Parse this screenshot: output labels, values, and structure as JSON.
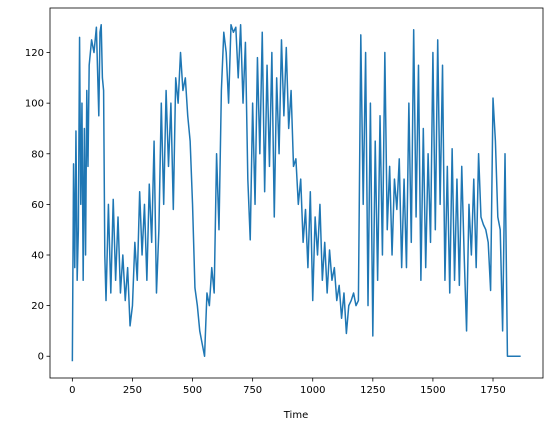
{
  "chart_data": {
    "type": "line",
    "xlabel": "Time",
    "x": [
      0,
      5,
      10,
      15,
      20,
      25,
      30,
      35,
      40,
      45,
      50,
      55,
      60,
      65,
      70,
      80,
      90,
      100,
      110,
      115,
      120,
      125,
      130,
      135,
      140,
      150,
      160,
      170,
      180,
      190,
      200,
      210,
      220,
      230,
      240,
      250,
      260,
      270,
      280,
      290,
      300,
      310,
      320,
      330,
      340,
      350,
      360,
      370,
      380,
      390,
      400,
      410,
      420,
      430,
      440,
      450,
      460,
      470,
      480,
      490,
      500,
      510,
      520,
      530,
      540,
      550,
      560,
      570,
      580,
      590,
      600,
      610,
      620,
      630,
      640,
      650,
      660,
      670,
      680,
      690,
      700,
      710,
      720,
      730,
      740,
      750,
      760,
      770,
      780,
      790,
      800,
      810,
      820,
      830,
      840,
      850,
      860,
      870,
      880,
      890,
      900,
      910,
      920,
      930,
      940,
      950,
      960,
      970,
      980,
      990,
      1000,
      1010,
      1020,
      1030,
      1040,
      1050,
      1060,
      1070,
      1080,
      1090,
      1100,
      1110,
      1120,
      1130,
      1140,
      1150,
      1160,
      1170,
      1180,
      1190,
      1200,
      1210,
      1220,
      1230,
      1240,
      1250,
      1260,
      1270,
      1280,
      1290,
      1300,
      1310,
      1320,
      1330,
      1340,
      1350,
      1360,
      1370,
      1380,
      1390,
      1400,
      1410,
      1420,
      1430,
      1440,
      1450,
      1460,
      1470,
      1480,
      1490,
      1500,
      1510,
      1520,
      1530,
      1540,
      1550,
      1560,
      1570,
      1580,
      1590,
      1600,
      1610,
      1620,
      1630,
      1640,
      1650,
      1660,
      1670,
      1680,
      1690,
      1700,
      1710,
      1720,
      1730,
      1740,
      1750,
      1760,
      1770,
      1780,
      1790,
      1800,
      1810,
      1820,
      1840,
      1865
    ],
    "series": [
      {
        "name": "Time",
        "color": "#1f77b4",
        "values": [
          -2,
          76,
          35,
          89,
          30,
          50,
          126,
          60,
          100,
          30,
          90,
          40,
          105,
          75,
          115,
          125,
          120,
          130,
          95,
          128,
          131,
          110,
          105,
          40,
          22,
          60,
          25,
          62,
          30,
          55,
          25,
          40,
          22,
          35,
          12,
          20,
          45,
          30,
          65,
          40,
          60,
          30,
          68,
          45,
          85,
          25,
          50,
          100,
          60,
          105,
          75,
          100,
          58,
          110,
          100,
          120,
          105,
          110,
          95,
          85,
          60,
          27,
          20,
          10,
          5,
          0,
          25,
          20,
          35,
          25,
          80,
          50,
          105,
          128,
          120,
          100,
          131,
          128,
          130,
          110,
          131,
          100,
          124,
          70,
          46,
          100,
          60,
          118,
          80,
          128,
          65,
          115,
          75,
          120,
          55,
          110,
          80,
          125,
          95,
          122,
          90,
          105,
          75,
          78,
          60,
          70,
          45,
          58,
          35,
          65,
          22,
          55,
          40,
          60,
          30,
          45,
          25,
          42,
          30,
          35,
          22,
          28,
          15,
          25,
          9,
          20,
          22,
          25,
          20,
          22,
          127,
          60,
          120,
          20,
          100,
          8,
          85,
          30,
          95,
          40,
          120,
          50,
          75,
          40,
          70,
          58,
          78,
          35,
          70,
          35,
          100,
          45,
          129,
          55,
          115,
          30,
          90,
          35,
          80,
          45,
          120,
          50,
          125,
          60,
          115,
          30,
          75,
          25,
          82,
          30,
          70,
          28,
          75,
          40,
          10,
          60,
          40,
          70,
          35,
          80,
          55,
          52,
          50,
          45,
          26,
          102,
          85,
          55,
          50,
          10,
          80,
          0,
          0,
          0,
          0
        ]
      }
    ],
    "xlim": [
      -93,
      1958
    ],
    "ylim": [
      -8.6,
      137.6
    ],
    "xticks": [
      0,
      250,
      500,
      750,
      1000,
      1250,
      1500,
      1750
    ],
    "yticks": [
      0,
      20,
      40,
      60,
      80,
      100,
      120
    ]
  }
}
